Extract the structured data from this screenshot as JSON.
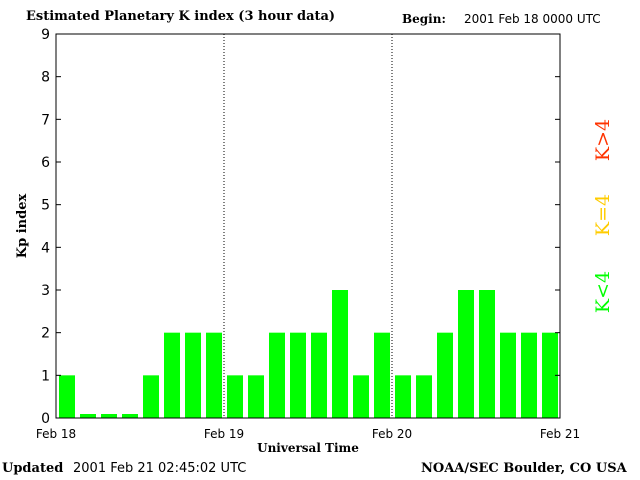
{
  "header": {
    "title": "Estimated Planetary K index (3 hour data)",
    "begin_label": "Begin:",
    "begin_value": "2001 Feb 18 0000 UTC"
  },
  "footer": {
    "updated_label": "Updated",
    "updated_value": "2001 Feb 21 02:45:02 UTC",
    "credit": "NOAA/SEC Boulder, CO USA"
  },
  "legend": {
    "items": [
      {
        "label": "K>4",
        "color": "#ff3300"
      },
      {
        "label": "K=4",
        "color": "#ffcc00"
      },
      {
        "label": "K<4",
        "color": "#00ff00"
      }
    ]
  },
  "chart_data": {
    "type": "bar",
    "title": "Estimated Planetary K index (3 hour data)",
    "xlabel": "Universal Time",
    "ylabel": "Kp index",
    "ylim": [
      0,
      9
    ],
    "yticks": [
      0,
      1,
      2,
      3,
      4,
      5,
      6,
      7,
      8,
      9
    ],
    "xticks": [
      "Feb 18",
      "Feb 19",
      "Feb 20",
      "Feb 21"
    ],
    "day_separators": [
      "Feb 19",
      "Feb 20"
    ],
    "bar_color": "#00ff00",
    "values": [
      1,
      0,
      0,
      0,
      1,
      2,
      2,
      2,
      1,
      1,
      2,
      2,
      2,
      3,
      1,
      2,
      1,
      1,
      2,
      3,
      3,
      2,
      2,
      2
    ],
    "interval_hours": 3
  }
}
